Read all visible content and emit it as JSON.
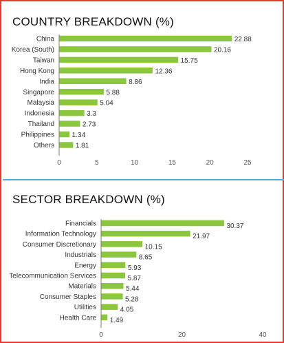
{
  "colors": {
    "bar": "#8cc63e",
    "frame": "#e53935",
    "separator": "#4bb3d9"
  },
  "chart_data": [
    {
      "type": "bar",
      "orientation": "horizontal",
      "title": "COUNTRY BREAKDOWN (%)",
      "categories": [
        "China",
        "Korea (South)",
        "Taiwan",
        "Hong Kong",
        "India",
        "Singapore",
        "Malaysia",
        "Indonesia",
        "Thailand",
        "Philippines",
        "Others"
      ],
      "values": [
        22.88,
        20.16,
        15.75,
        12.36,
        8.86,
        5.88,
        5.04,
        3.3,
        2.73,
        1.34,
        1.81
      ],
      "value_labels": [
        "22.88",
        "20.16",
        "15.75",
        "12.36",
        "8.86",
        "5.88",
        "5.04",
        "3.3",
        "2.73",
        "1.34",
        "1.81"
      ],
      "xlim": [
        0,
        25
      ],
      "xticks": [
        "0",
        "5",
        "10",
        "15",
        "20",
        "25"
      ],
      "grid": false
    },
    {
      "type": "bar",
      "orientation": "horizontal",
      "title": "SECTOR BREAKDOWN (%)",
      "categories": [
        "Financials",
        "Information Technology",
        "Consumer Discretionary",
        "Industrials",
        "Energy",
        "Telecommunication Services",
        "Materials",
        "Consumer Staples",
        "Utilities",
        "Health Care"
      ],
      "values": [
        30.37,
        21.97,
        10.15,
        8.65,
        5.93,
        5.87,
        5.44,
        5.28,
        4.05,
        1.49
      ],
      "value_labels": [
        "30.37",
        "21.97",
        "10.15",
        "8.65",
        "5.93",
        "5.87",
        "5.44",
        "5.28",
        "4.05",
        "1.49"
      ],
      "xlim": [
        0,
        40
      ],
      "xticks": [
        "0",
        "20",
        "40"
      ],
      "grid": false
    }
  ]
}
